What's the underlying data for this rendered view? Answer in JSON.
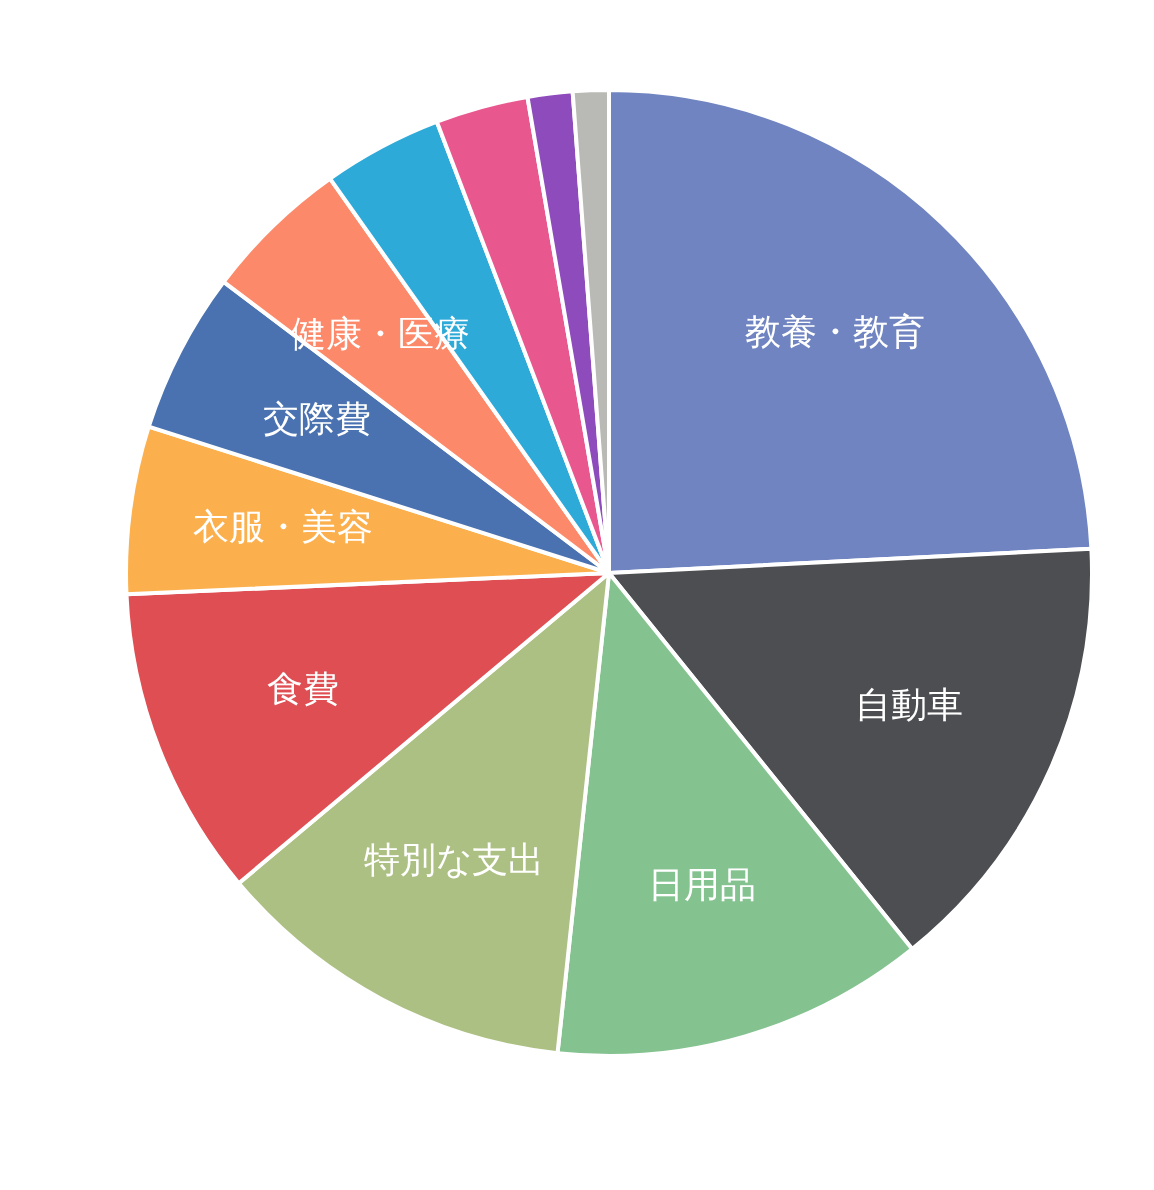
{
  "chart_data": {
    "type": "pie",
    "categories": [
      "教養・教育",
      "自動車",
      "日用品",
      "特別な支出",
      "食費",
      "衣服・美容",
      "交際費",
      "健康・医療",
      null,
      null,
      null,
      null
    ],
    "values": [
      24.2,
      15,
      12.5,
      12.2,
      10.4,
      5.6,
      5.4,
      4.9,
      4.0,
      3.1,
      1.5,
      1.2
    ],
    "colors": [
      "#6f84c0",
      "#4d4e52",
      "#84c290",
      "#adc083",
      "#df4e52",
      "#fbb04d",
      "#4a72b0",
      "#fc8a6a",
      "#2eaad9",
      "#e9578f",
      "#8e4bbc",
      "#b9b9b5"
    ],
    "legend": false
  }
}
